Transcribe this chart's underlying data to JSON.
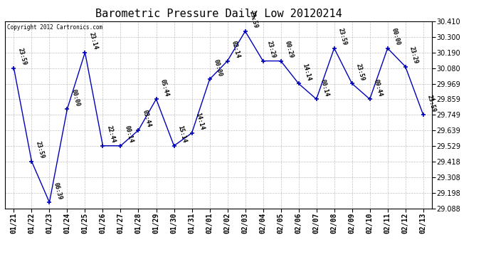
{
  "title": "Barometric Pressure Daily Low 20120214",
  "copyright": "Copyright 2012 Cartronics.com",
  "x_labels": [
    "01/21",
    "01/22",
    "01/23",
    "01/24",
    "01/25",
    "01/26",
    "01/27",
    "01/28",
    "01/29",
    "01/30",
    "01/31",
    "02/01",
    "02/02",
    "02/03",
    "02/04",
    "02/05",
    "02/06",
    "02/07",
    "02/08",
    "02/09",
    "02/10",
    "02/11",
    "02/12",
    "02/13"
  ],
  "y_values": [
    30.08,
    29.42,
    29.13,
    29.79,
    30.19,
    29.53,
    29.53,
    29.64,
    29.86,
    29.53,
    29.62,
    30.0,
    30.13,
    30.34,
    30.13,
    30.13,
    29.97,
    29.86,
    30.22,
    29.97,
    29.86,
    30.22,
    30.09,
    29.75
  ],
  "point_labels": [
    "23:59",
    "23:59",
    "06:39",
    "00:00",
    "23:14",
    "22:44",
    "00:14",
    "03:44",
    "05:44",
    "15:14",
    "14:14",
    "00:00",
    "02:14",
    "23:59",
    "23:29",
    "00:29",
    "14:14",
    "00:14",
    "23:59",
    "23:59",
    "09:44",
    "00:00",
    "23:29",
    "23:59"
  ],
  "line_color": "#0000bb",
  "marker_color": "#0000bb",
  "background_color": "#ffffff",
  "grid_color": "#bbbbbb",
  "ylim_min": 29.088,
  "ylim_max": 30.41,
  "yticks": [
    29.088,
    29.198,
    29.308,
    29.418,
    29.529,
    29.639,
    29.749,
    29.859,
    29.969,
    30.08,
    30.19,
    30.3,
    30.41
  ],
  "title_fontsize": 11,
  "label_fontsize": 7,
  "point_label_fontsize": 6,
  "fig_width": 6.9,
  "fig_height": 3.75
}
